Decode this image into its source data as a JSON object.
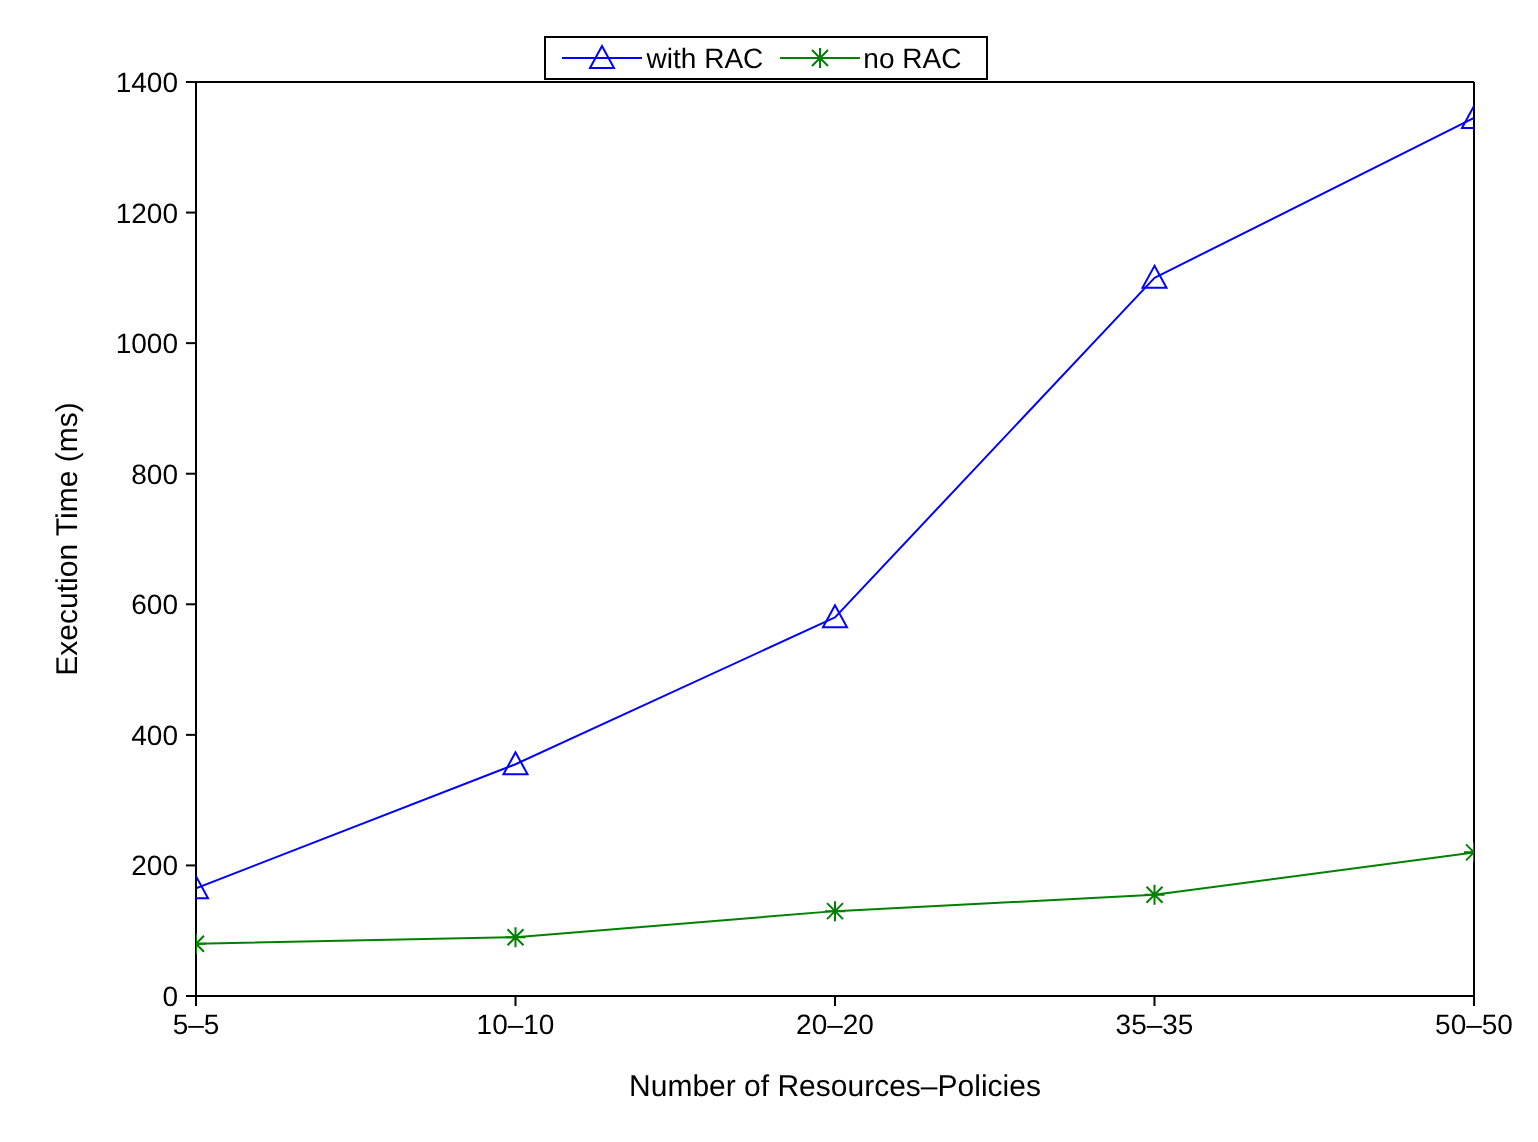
{
  "chart_data": {
    "type": "line",
    "xlabel": "Number of Resources–Policies",
    "ylabel": "Execution Time (ms)",
    "categories": [
      "5–5",
      "10–10",
      "20–20",
      "35–35",
      "50–50"
    ],
    "series": [
      {
        "name": "with RAC",
        "color": "#0000ff",
        "marker": "triangle",
        "values": [
          165,
          355,
          580,
          1100,
          1345
        ]
      },
      {
        "name": "no RAC",
        "color": "#008000",
        "marker": "cross",
        "values": [
          80,
          90,
          130,
          155,
          220
        ]
      }
    ],
    "ylim": [
      0,
      1400
    ],
    "yticks": [
      0,
      200,
      400,
      600,
      800,
      1000,
      1200,
      1400
    ],
    "grid": false,
    "legend": "top",
    "line_style": "solid"
  }
}
